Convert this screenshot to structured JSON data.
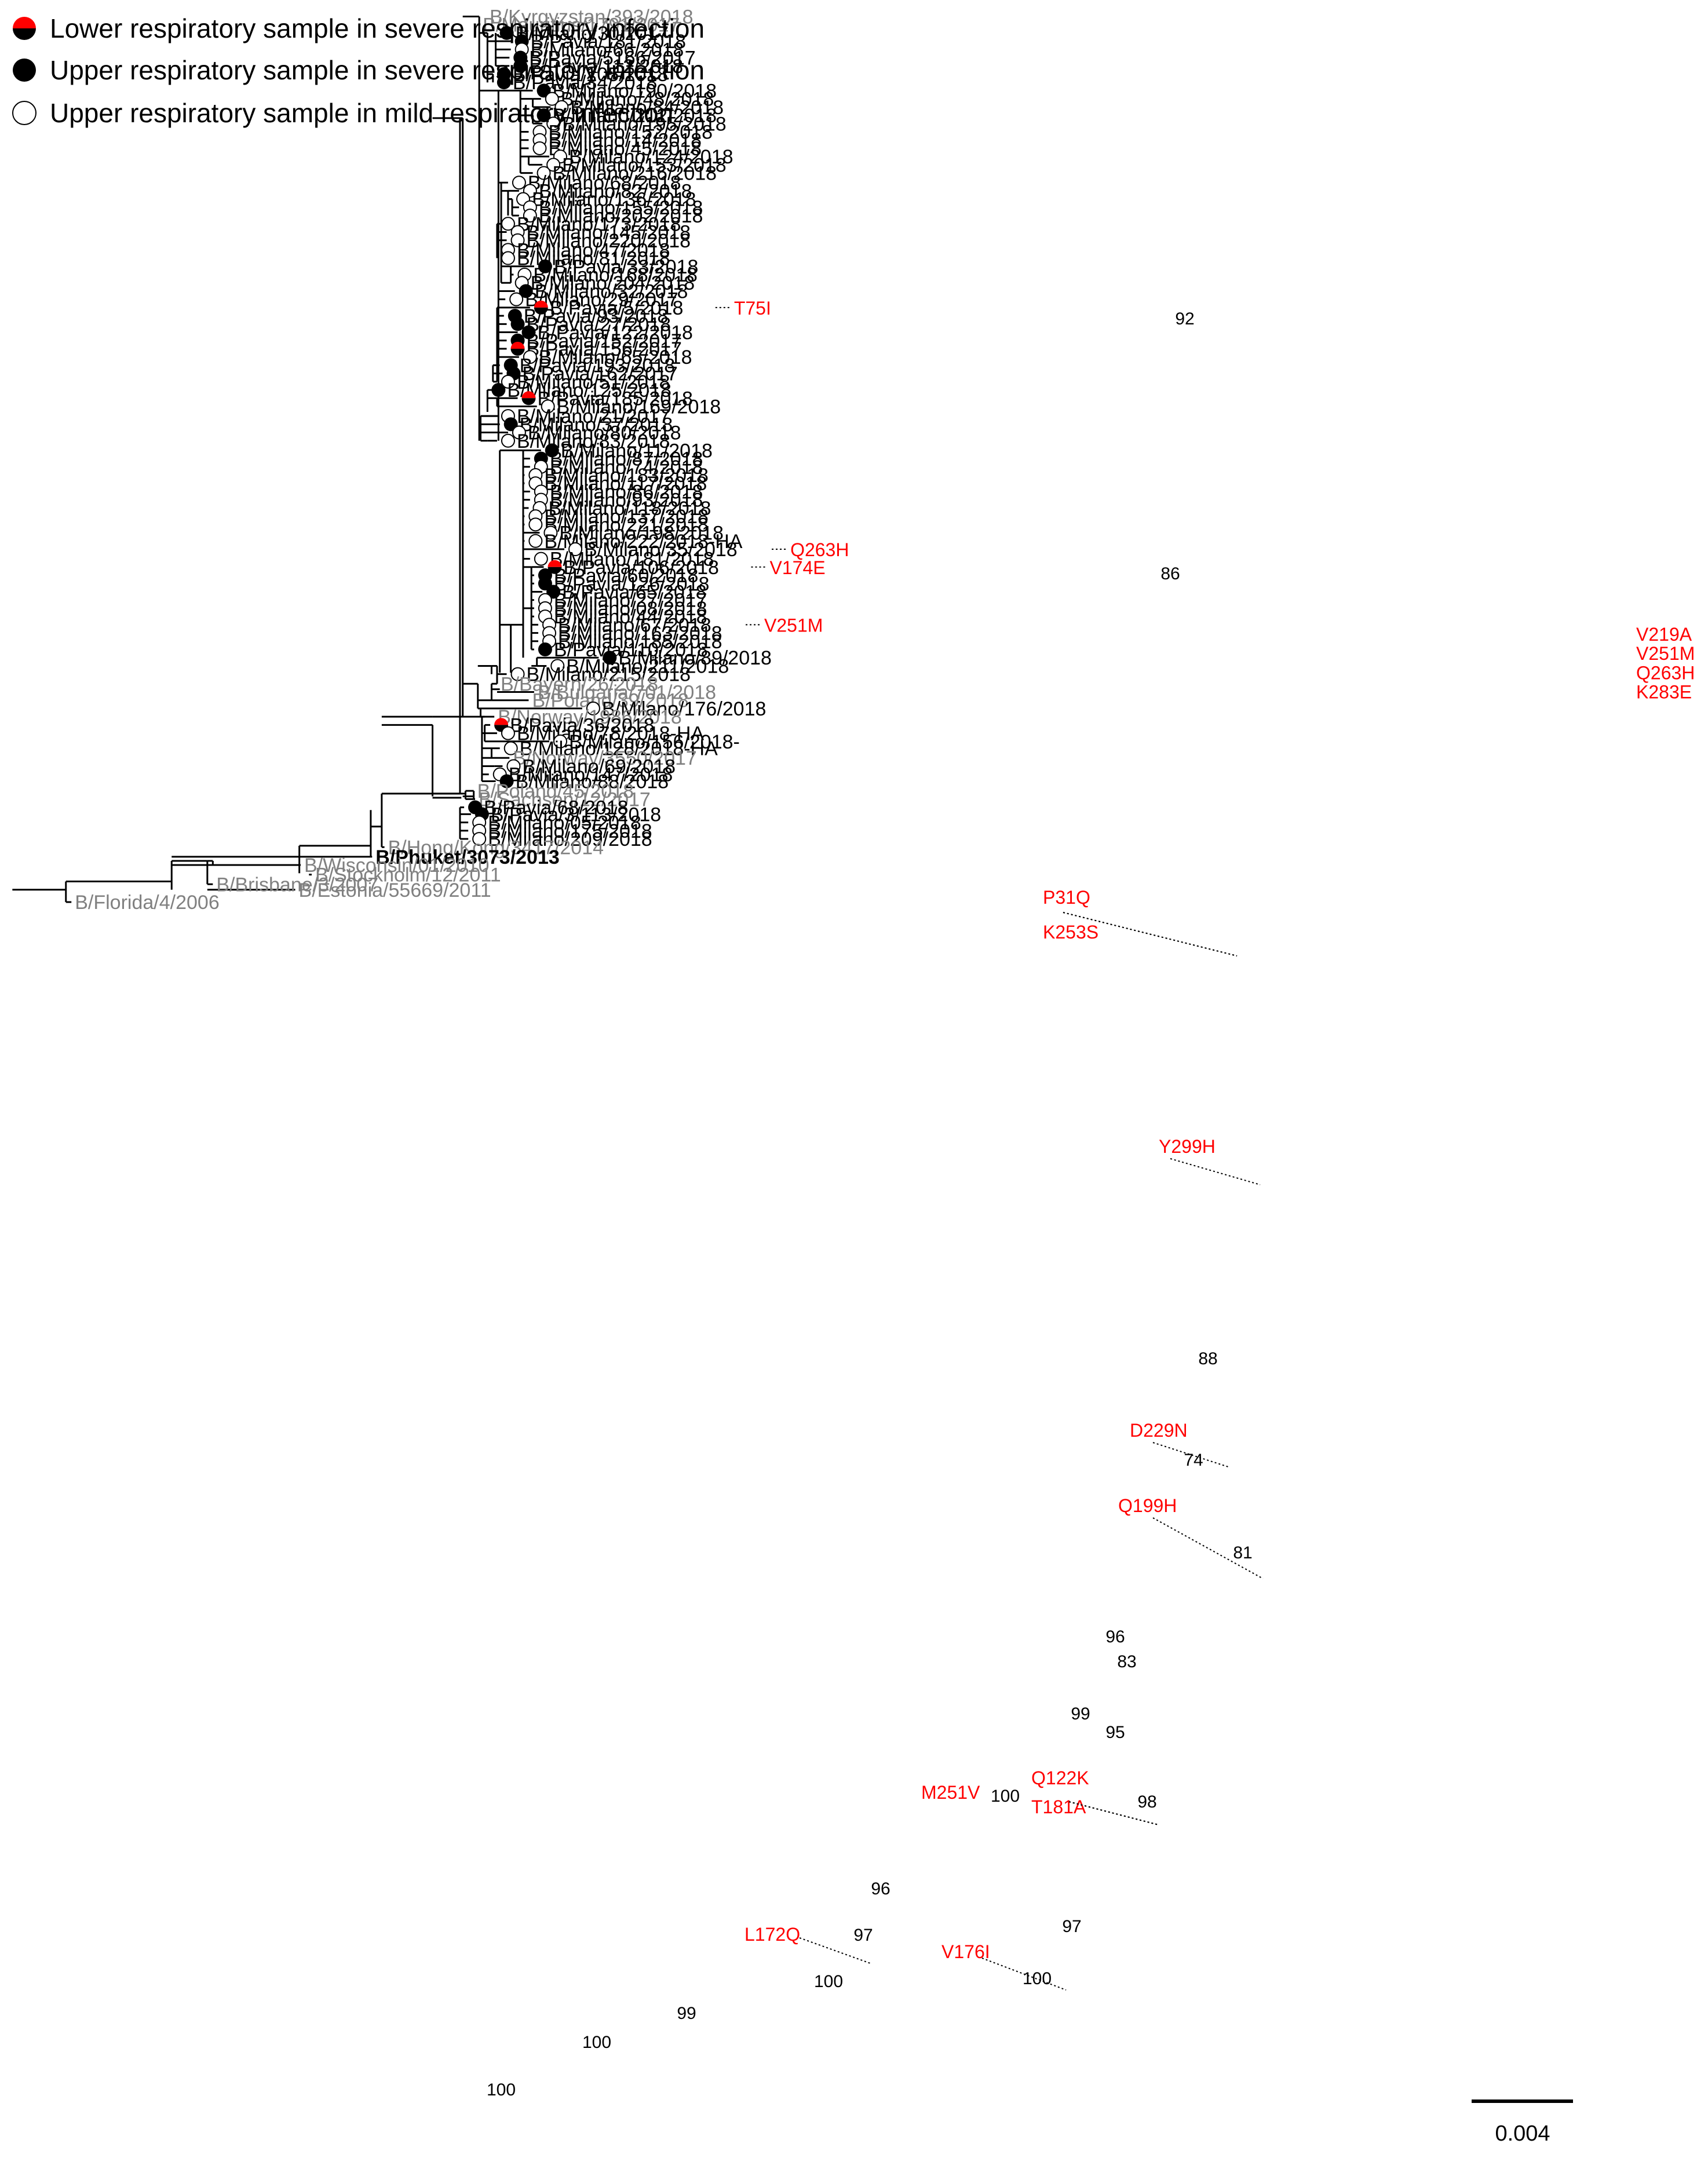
{
  "legend": {
    "lower_severe": "Lower respiratory sample in severe respiratory infection",
    "upper_severe": "Upper respiratory sample in severe respiratory infection",
    "upper_mild": "Upper respiratory sample in mild respiratory infection"
  },
  "colors": {
    "branch": "#000000",
    "reference": "#808080",
    "mutation": "#ff0000",
    "half_red": "#ff0000"
  },
  "scale_label": "0.004",
  "taxa": [
    {
      "label": "B/Kyrgyzstan/393/2018",
      "sym": "none",
      "ref": true
    },
    {
      "label": "B/Mauritius/1791/2017",
      "sym": "none",
      "ref": true
    },
    {
      "label": "B/Milano/30/2017",
      "sym": "filled"
    },
    {
      "label": "B/Pavia/181/2018",
      "sym": "filled"
    },
    {
      "label": "B/Milano/66/2018",
      "sym": "open"
    },
    {
      "label": "B/Pavia/5166/2017",
      "sym": "filled"
    },
    {
      "label": "B/Pavia/112/2018",
      "sym": "filled"
    },
    {
      "label": "B/Pavia/105/2018",
      "sym": "filled"
    },
    {
      "label": "B/Pavia/34/2018",
      "sym": "filled"
    },
    {
      "label": "B/Milano/190/2018",
      "sym": "filled"
    },
    {
      "label": "B/Milano/48/2018",
      "sym": "open"
    },
    {
      "label": "B/Milano/84/2018",
      "sym": "open"
    },
    {
      "label": "B/Milano/212/2018",
      "sym": "filled"
    },
    {
      "label": "B/Milano/195/2018",
      "sym": "open"
    },
    {
      "label": "B/Milano/152/2018",
      "sym": "open"
    },
    {
      "label": "B/Milano/14/2018",
      "sym": "open"
    },
    {
      "label": "B/Milano/45/2018",
      "sym": "open"
    },
    {
      "label": "B/Milano/124/2018",
      "sym": "open"
    },
    {
      "label": "B/Milano/153/2018",
      "sym": "open"
    },
    {
      "label": "B/Milano/216/2018",
      "sym": "open"
    },
    {
      "label": "B/Milano/68/2018",
      "sym": "open"
    },
    {
      "label": "B/Milano/82/2018",
      "sym": "open"
    },
    {
      "label": "B/Milano/136/2018",
      "sym": "open"
    },
    {
      "label": "B/Milano/155/2018",
      "sym": "open"
    },
    {
      "label": "B/Milano/202/2018",
      "sym": "open"
    },
    {
      "label": "B/Milano/173/2018",
      "sym": "open"
    },
    {
      "label": "B/Milano/145/2018",
      "sym": "open"
    },
    {
      "label": "B/Milano/220/2018",
      "sym": "open"
    },
    {
      "label": "B/Milano/47/2018",
      "sym": "open"
    },
    {
      "label": "B/Milano/81/2018",
      "sym": "open"
    },
    {
      "label": "B/Pavia/33/2018",
      "sym": "filled"
    },
    {
      "label": "B/Milano/168/2018",
      "sym": "open"
    },
    {
      "label": "B/Milano/204/2018",
      "sym": "open"
    },
    {
      "label": "B/Milano/32/2018",
      "sym": "filled"
    },
    {
      "label": "B/Milano/29/2017",
      "sym": "open"
    },
    {
      "label": "B/Pavia/5/2018",
      "sym": "half",
      "mut": "T75I"
    },
    {
      "label": "B/Pavia/93/2018",
      "sym": "filled"
    },
    {
      "label": "B/Pavia/27/2018",
      "sym": "filled"
    },
    {
      "label": "B/Pavia/122/2018",
      "sym": "filled"
    },
    {
      "label": "B/Pavia/152/2017",
      "sym": "filled"
    },
    {
      "label": "B/Pavia/156/2017",
      "sym": "half"
    },
    {
      "label": "B/Milano/65/2018",
      "sym": "open"
    },
    {
      "label": "B/Pavia/193/2018",
      "sym": "filled"
    },
    {
      "label": "B/Pavia/162/2017",
      "sym": "filled"
    },
    {
      "label": "B/Milano/51/2018",
      "sym": "open"
    },
    {
      "label": "B/Milano/125/2018",
      "sym": "filled"
    },
    {
      "label": "B/Pavia/185/2018",
      "sym": "half"
    },
    {
      "label": "B/Milano/169/2018",
      "sym": "open"
    },
    {
      "label": "B/Milano/21/2017",
      "sym": "open"
    },
    {
      "label": "B/Milano/37/2018",
      "sym": "filled"
    },
    {
      "label": "B/Milano/80/2018",
      "sym": "open"
    },
    {
      "label": "B/Milano/83/2018",
      "sym": "open"
    },
    {
      "label": "B/Milano/11/2018",
      "sym": "filled"
    },
    {
      "label": "B/Milano/87/2018",
      "sym": "filled"
    },
    {
      "label": "B/Milano/74/2018",
      "sym": "open"
    },
    {
      "label": "B/Milano/183/2018",
      "sym": "open"
    },
    {
      "label": "B/Milano/117/2018",
      "sym": "open"
    },
    {
      "label": "B/Milano/86/2018",
      "sym": "open"
    },
    {
      "label": "B/Milano/93/2018",
      "sym": "open"
    },
    {
      "label": "B/Milano/118/2018",
      "sym": "open"
    },
    {
      "label": "B/Milano/137/2018",
      "sym": "open"
    },
    {
      "label": "B/Milano/221/2018",
      "sym": "open"
    },
    {
      "label": "B/Milano/198/2018",
      "sym": "open"
    },
    {
      "label": "B/Milano/222/2018-HA",
      "sym": "open"
    },
    {
      "label": "B/Milano/35/2018",
      "sym": "open",
      "mut": "Q263H"
    },
    {
      "label": "B/Milano/181/2018",
      "sym": "open"
    },
    {
      "label": "B/Pavia/106/2018",
      "sym": "half",
      "mut": "V174E"
    },
    {
      "label": "B/Pavia/60/2018",
      "sym": "filled"
    },
    {
      "label": "B/Pavia/126/2018",
      "sym": "filled"
    },
    {
      "label": "B/Pavia/65/2018",
      "sym": "filled"
    },
    {
      "label": "B/Milano/27/2017",
      "sym": "open"
    },
    {
      "label": "B/Milano/08/2018",
      "sym": "open"
    },
    {
      "label": "B/Milano/44/2018",
      "sym": "open"
    },
    {
      "label": "B/Milano/67/2018",
      "sym": "open",
      "mut": "V251M"
    },
    {
      "label": "B/Milano/163/2018",
      "sym": "open"
    },
    {
      "label": "B/Milano/185/2018",
      "sym": "open"
    },
    {
      "label": "B/Pavia/110/2018",
      "sym": "filled"
    },
    {
      "label": "B/Milano/89/2018",
      "sym": "filled",
      "mut": "V219A, V251M, Q263H, K283E"
    },
    {
      "label": "B/Milano/211/2018",
      "sym": "open"
    },
    {
      "label": "B/Milano/215/2018",
      "sym": "open"
    },
    {
      "label": "B/Bayern/26/2018",
      "sym": "none",
      "ref": true
    },
    {
      "label": "B/Bulgaria/701/2018",
      "sym": "none",
      "ref": true
    },
    {
      "label": "B/Poland/39/2018",
      "sym": "none",
      "ref": true
    },
    {
      "label": "B/Milano/176/2018",
      "sym": "open"
    },
    {
      "label": "B/Norway/1986/2018",
      "sym": "none",
      "ref": true
    },
    {
      "label": "B/Pavia/36/2018",
      "sym": "half"
    },
    {
      "label": "B/Milano/78/2018-HA",
      "sym": "open"
    },
    {
      "label": "B/Milano/156/2018-",
      "sym": "open"
    },
    {
      "label": "B/Milano/128/2018-HA",
      "sym": "open"
    },
    {
      "label": "B/Norway/3550/2017",
      "sym": "none",
      "ref": true
    },
    {
      "label": "B/Milano/69/2018",
      "sym": "open"
    },
    {
      "label": "B/Milano/147/2018",
      "sym": "open"
    },
    {
      "label": "B/Milano/88/2018",
      "sym": "filled"
    },
    {
      "label": "B/Poland/45/2018",
      "sym": "none",
      "ref": true
    },
    {
      "label": "B/Sachsen/12/2017",
      "sym": "none",
      "ref": true
    },
    {
      "label": "B/Pavia/68/2018",
      "sym": "filled"
    },
    {
      "label": "B/Pavia/3/113/2018",
      "sym": "filled"
    },
    {
      "label": "B/Milano/05/2018",
      "sym": "open"
    },
    {
      "label": "B/Milano/175/2018",
      "sym": "open"
    },
    {
      "label": "B/Milano/209/2018",
      "sym": "open"
    },
    {
      "label": "B/Hong/Kong/3417/2014",
      "sym": "none",
      "ref": true
    },
    {
      "label": "B/Phuket/3073/2013",
      "sym": "none",
      "bold": true
    },
    {
      "label": "B/Wisconsin/01/2010",
      "sym": "none",
      "ref": true
    },
    {
      "label": "B/Stockholm/12/2011",
      "sym": "none",
      "ref": true
    },
    {
      "label": "B/Brisbane/3/2007",
      "sym": "none",
      "ref": true
    },
    {
      "label": "B/Estonia/55669/2011",
      "sym": "none",
      "ref": true
    },
    {
      "label": "B/Florida/4/2006",
      "sym": "none",
      "ref": true
    }
  ],
  "bootstrap": [
    "92",
    "86",
    "88",
    "74",
    "81",
    "96",
    "83",
    "99",
    "95",
    "98",
    "100",
    "96",
    "97",
    "97",
    "100",
    "100",
    "99",
    "100",
    "100"
  ],
  "branch_mutations": [
    "P31Q",
    "K253S",
    "Y299H",
    "D229N",
    "Q199H",
    "M251V",
    "Q122K",
    "T181A",
    "L172Q",
    "V176I"
  ]
}
